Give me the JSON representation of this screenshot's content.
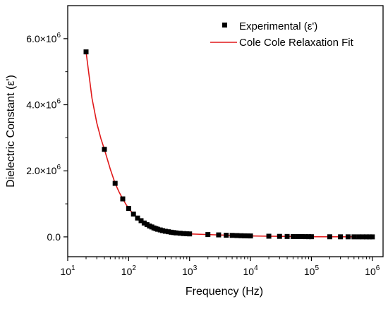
{
  "chart_data": {
    "type": "scatter",
    "title": "",
    "xlabel": "Frequency (Hz)",
    "ylabel": "Dielectric Constant (ε')",
    "xscale": "log",
    "xlim": [
      10,
      1500000
    ],
    "ylim": [
      -600000,
      7000000
    ],
    "grid": false,
    "legend_position": "top-right",
    "x_ticks": [
      {
        "value": 10,
        "base": "10",
        "exp": "1"
      },
      {
        "value": 100,
        "base": "10",
        "exp": "2"
      },
      {
        "value": 1000,
        "base": "10",
        "exp": "3"
      },
      {
        "value": 10000,
        "base": "10",
        "exp": "4"
      },
      {
        "value": 100000,
        "base": "10",
        "exp": "5"
      },
      {
        "value": 1000000,
        "base": "10",
        "exp": "6"
      }
    ],
    "y_ticks": [
      {
        "value": 0,
        "label": "0.0",
        "exp": ""
      },
      {
        "value": 2000000,
        "label": "2.0×10",
        "exp": "6"
      },
      {
        "value": 4000000,
        "label": "4.0×10",
        "exp": "6"
      },
      {
        "value": 6000000,
        "label": "6.0×10",
        "exp": "6"
      }
    ],
    "series": [
      {
        "name": "Experimental (ε')",
        "kind": "scatter",
        "marker": "square",
        "color": "#000000",
        "x": [
          20,
          40,
          60,
          80,
          100,
          120,
          140,
          160,
          180,
          200,
          220,
          240,
          260,
          280,
          300,
          330,
          360,
          400,
          450,
          500,
          550,
          600,
          700,
          800,
          900,
          1000,
          2000,
          3000,
          4000,
          5000,
          6000,
          7000,
          8000,
          9000,
          10000,
          20000,
          30000,
          40000,
          50000,
          60000,
          70000,
          80000,
          90000,
          100000,
          200000,
          300000,
          400000,
          500000,
          600000,
          700000,
          800000,
          900000,
          1000000
        ],
        "y": [
          5600000,
          2650000,
          1620000,
          1150000,
          860000,
          690000,
          570000,
          490000,
          420000,
          370000,
          330000,
          300000,
          270000,
          250000,
          230000,
          210000,
          190000,
          170000,
          155000,
          140000,
          130000,
          120000,
          110000,
          100000,
          95000,
          90000,
          70000,
          60000,
          50000,
          45000,
          40000,
          35000,
          32000,
          30000,
          28000,
          20000,
          15000,
          12000,
          10000,
          9000,
          8000,
          7000,
          6000,
          5000,
          3000,
          2000,
          1500,
          1000,
          800,
          600,
          400,
          200,
          0
        ]
      },
      {
        "name": "Cole Cole Relaxation Fit",
        "kind": "line",
        "color": "#e0191a",
        "x": [
          20,
          25,
          30,
          35,
          40,
          50,
          60,
          70,
          80,
          90,
          100,
          120,
          140,
          160,
          180,
          200,
          250,
          300,
          400,
          500,
          700,
          1000,
          2000,
          5000,
          10000,
          100000,
          1000000
        ],
        "y": [
          5600000,
          4200000,
          3450000,
          2980000,
          2650000,
          2050000,
          1620000,
          1350000,
          1150000,
          990000,
          860000,
          690000,
          570000,
          490000,
          420000,
          370000,
          285000,
          230000,
          170000,
          140000,
          110000,
          90000,
          70000,
          45000,
          28000,
          5000,
          0
        ]
      }
    ]
  }
}
